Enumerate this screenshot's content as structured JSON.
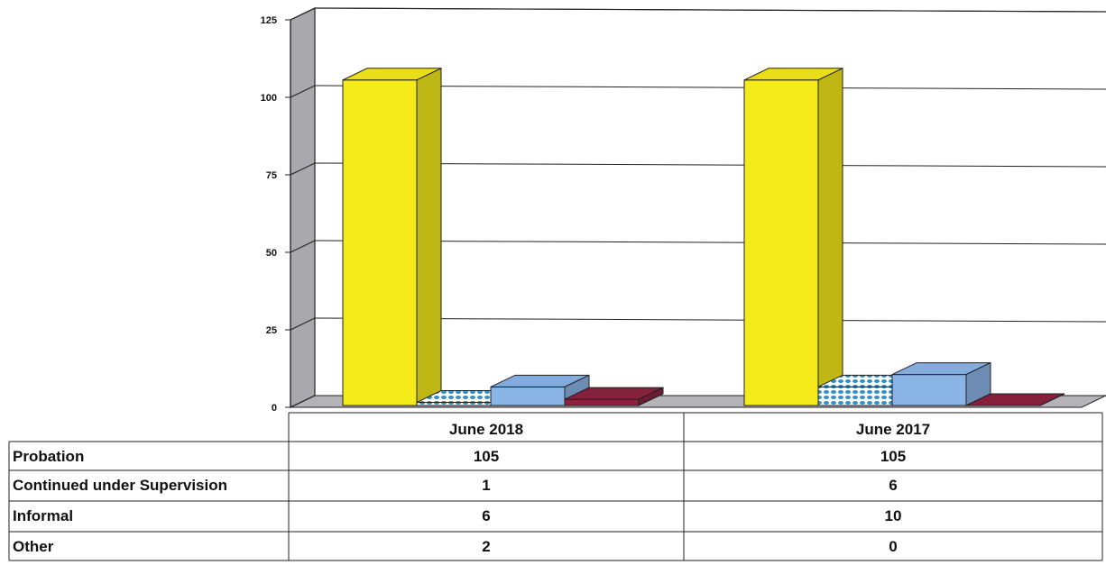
{
  "chart_data": {
    "type": "bar",
    "categories": [
      "June 2018",
      "June 2017"
    ],
    "series": [
      {
        "name": "Probation",
        "values": [
          105,
          105
        ],
        "color": "#f5ea1a"
      },
      {
        "name": "Continued under Supervision",
        "values": [
          1,
          6
        ],
        "color": "#5cb8e0"
      },
      {
        "name": "Informal",
        "values": [
          6,
          10
        ],
        "color": "#8ab4e6"
      },
      {
        "name": "Other",
        "values": [
          2,
          0
        ],
        "color": "#8c2240"
      }
    ],
    "yticks": [
      0,
      25,
      50,
      75,
      100,
      125
    ],
    "ylim": [
      0,
      125
    ],
    "grid": true,
    "legend": "data table below chart"
  }
}
